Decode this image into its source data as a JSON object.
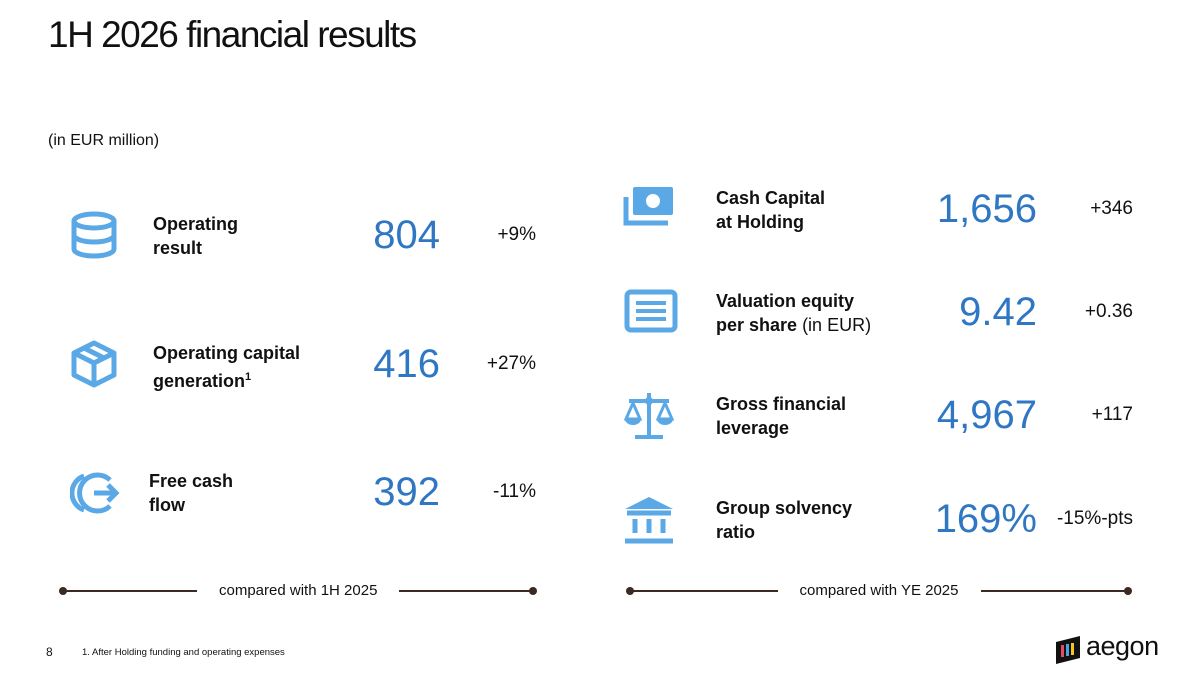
{
  "title": "1H 2026 financial results",
  "unit_note": "(in EUR million)",
  "left": {
    "metrics": [
      {
        "label_lines": [
          "Operating",
          "result"
        ],
        "value": "804",
        "change": "+9%"
      },
      {
        "label_lines": [
          "Operating capital",
          "generation"
        ],
        "footnote_marker": "1",
        "value": "416",
        "change": "+27%"
      },
      {
        "label_lines": [
          "Free cash",
          "flow"
        ],
        "value": "392",
        "change": "-11%"
      }
    ],
    "comparison": "compared with 1H 2025"
  },
  "right": {
    "metrics": [
      {
        "label_lines": [
          "Cash Capital",
          "at Holding"
        ],
        "value": "1,656",
        "change": "+346"
      },
      {
        "label_lines": [
          "Valuation equity",
          "per share"
        ],
        "unit": "(in EUR)",
        "value": "9.42",
        "change": "+0.36"
      },
      {
        "label_lines": [
          "Gross financial",
          "leverage"
        ],
        "value": "4,967",
        "change": "+117"
      },
      {
        "label_lines": [
          "Group solvency",
          "ratio"
        ],
        "value": "169%",
        "change": "-15%-pts"
      }
    ],
    "comparison": "compared with YE 2025"
  },
  "page_number": "8",
  "footnote": "1. After Holding funding and operating expenses",
  "logo": "aegon"
}
